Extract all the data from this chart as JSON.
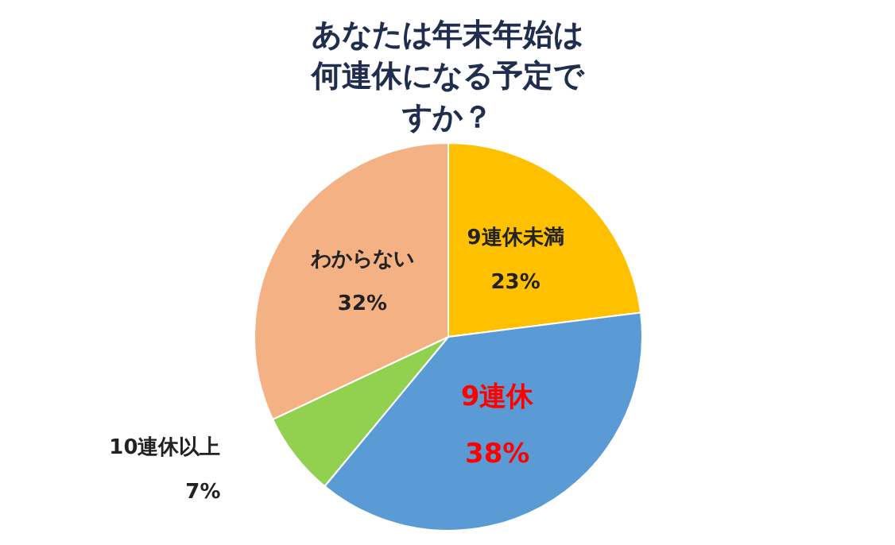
{
  "chart_data": {
    "type": "pie",
    "title": "あなたは年末年始は何連休になる予定ですか？",
    "categories": [
      "9連休未満",
      "9連休",
      "10連休以上",
      "わからない"
    ],
    "values": [
      23,
      38,
      7,
      32
    ],
    "colors": [
      "#ffc000",
      "#5b9bd5",
      "#92d050",
      "#f4b183"
    ],
    "value_labels": [
      "23%",
      "38%",
      "7%",
      "32%"
    ]
  }
}
